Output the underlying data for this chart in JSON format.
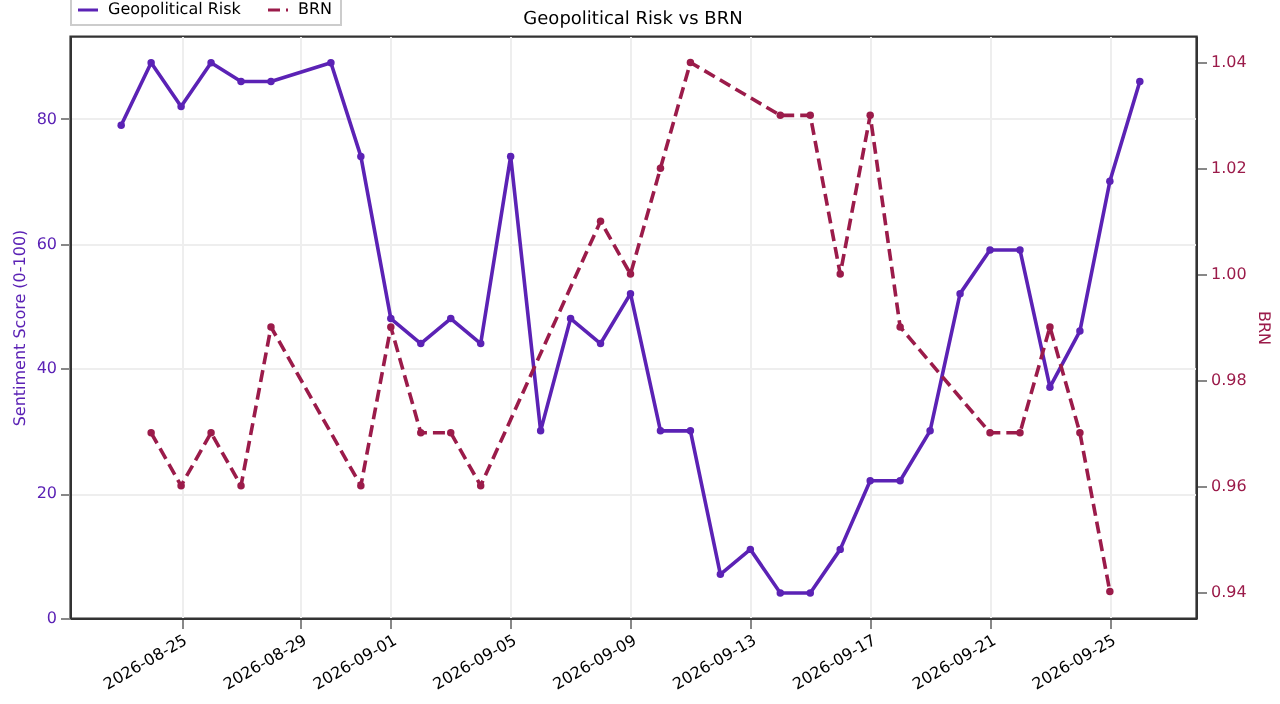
{
  "chart_data": {
    "type": "line",
    "title": "Geopolitical Risk vs BRN",
    "ylabel": "Sentiment Score (0-100)",
    "y2label": "BRN",
    "xlim": [
      "2026-08-21T07:00",
      "2026-09-27T21:00"
    ],
    "xticks": [
      "2026-08-25",
      "2026-08-29",
      "2026-09-01",
      "2026-09-05",
      "2026-09-09",
      "2026-09-13",
      "2026-09-17",
      "2026-09-21",
      "2026-09-25"
    ],
    "ylim": [
      0,
      93.3
    ],
    "yticks": [
      0,
      20,
      40,
      60,
      80
    ],
    "y2lim": [
      0.935,
      1.045
    ],
    "y2ticks": [
      0.94,
      0.96,
      0.98,
      {
        "value": 1.0,
        "label": "1.00"
      },
      1.02,
      1.04
    ],
    "grid": true,
    "legend": "top left",
    "marker": "circle",
    "series": [
      {
        "name": "Geopolitical Risk",
        "color": "#5b22b5",
        "line_style": "solid",
        "x": [
          "2026-08-23",
          "2026-08-24",
          "2026-08-25",
          "2026-08-26",
          "2026-08-27",
          "2026-08-28",
          "2026-08-30",
          "2026-08-31",
          "2026-09-01",
          "2026-09-02",
          "2026-09-03",
          "2026-09-04",
          "2026-09-05",
          "2026-09-06",
          "2026-09-07",
          "2026-09-08",
          "2026-09-09",
          "2026-09-10",
          "2026-09-11",
          "2026-09-12",
          "2026-09-13",
          "2026-09-14",
          "2026-09-15",
          "2026-09-16",
          "2026-09-17",
          "2026-09-18",
          "2026-09-19",
          "2026-09-20",
          "2026-09-21",
          "2026-09-22",
          "2026-09-23",
          "2026-09-24",
          "2026-09-25",
          "2026-09-26"
        ],
        "values": [
          79,
          89,
          82,
          89,
          86,
          86,
          89,
          74,
          48,
          44,
          48,
          44,
          74,
          30,
          48,
          44,
          52,
          30,
          30,
          7,
          11,
          4,
          4,
          11,
          22,
          22,
          30,
          52,
          59,
          59,
          37,
          46,
          70,
          86
        ]
      },
      {
        "name": "BRN",
        "color": "#9b1b4a",
        "line_style": "dashed",
        "axis": "y2",
        "x": [
          "2026-08-24",
          "2026-08-25",
          "2026-08-26",
          "2026-08-27",
          "2026-08-28",
          "2026-08-31",
          "2026-09-01",
          "2026-09-02",
          "2026-09-03",
          "2026-09-04",
          "2026-09-08",
          "2026-09-09",
          "2026-09-10",
          "2026-09-11",
          "2026-09-14",
          "2026-09-15",
          "2026-09-16",
          "2026-09-17",
          "2026-09-18",
          "2026-09-21",
          "2026-09-22",
          "2026-09-23",
          "2026-09-24",
          "2026-09-25"
        ],
        "values": [
          0.97,
          0.96,
          0.97,
          0.96,
          0.99,
          0.96,
          0.99,
          0.97,
          0.97,
          0.96,
          1.01,
          1.0,
          1.02,
          1.04,
          1.03,
          1.03,
          1.0,
          1.03,
          0.99,
          0.97,
          0.97,
          0.99,
          0.97,
          0.94
        ]
      }
    ]
  }
}
